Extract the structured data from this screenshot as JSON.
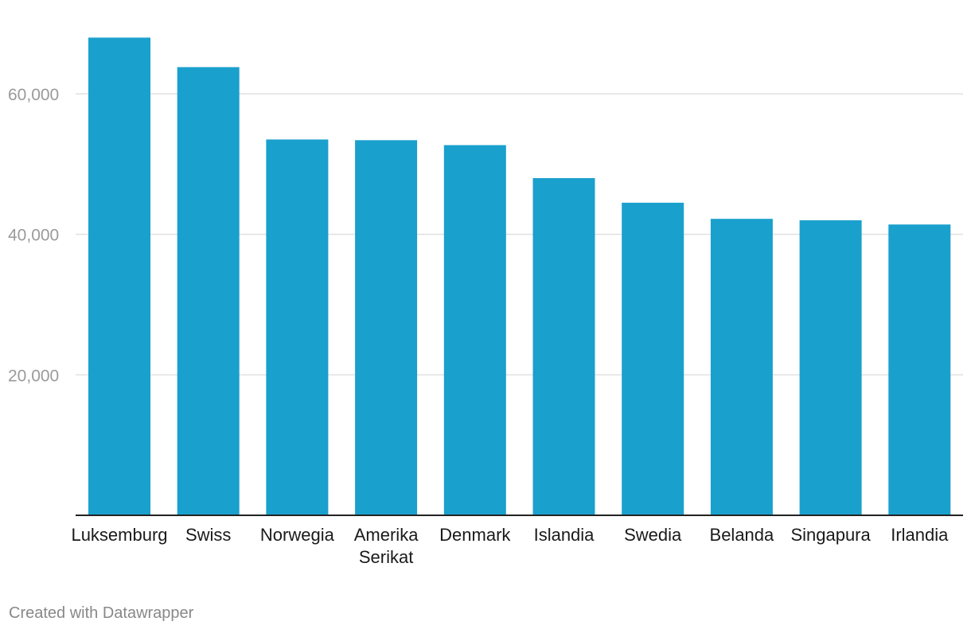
{
  "chart_data": {
    "type": "bar",
    "categories": [
      "Luksemburg",
      "Swiss",
      "Norwegia",
      "Amerika Serikat",
      "Denmark",
      "Islandia",
      "Swedia",
      "Belanda",
      "Singapura",
      "Irlandia"
    ],
    "category_lines": [
      [
        "Luksemburg"
      ],
      [
        "Swiss"
      ],
      [
        "Norwegia"
      ],
      [
        "Amerika",
        "Serikat"
      ],
      [
        "Denmark"
      ],
      [
        "Islandia"
      ],
      [
        "Swedia"
      ],
      [
        "Belanda"
      ],
      [
        "Singapura"
      ],
      [
        "Irlandia"
      ]
    ],
    "values": [
      68000,
      63800,
      53500,
      53400,
      52700,
      48000,
      44500,
      42200,
      42000,
      41400
    ],
    "ylim": [
      0,
      70000
    ],
    "yticks": [
      20000,
      40000,
      60000
    ],
    "ytick_labels": [
      "20,000",
      "40,000",
      "60,000"
    ],
    "grid": true,
    "legend": "none",
    "bar_color": "#1aa0cd",
    "title": "",
    "xlabel": "",
    "ylabel": ""
  },
  "footer": {
    "credit": "Created with Datawrapper"
  }
}
